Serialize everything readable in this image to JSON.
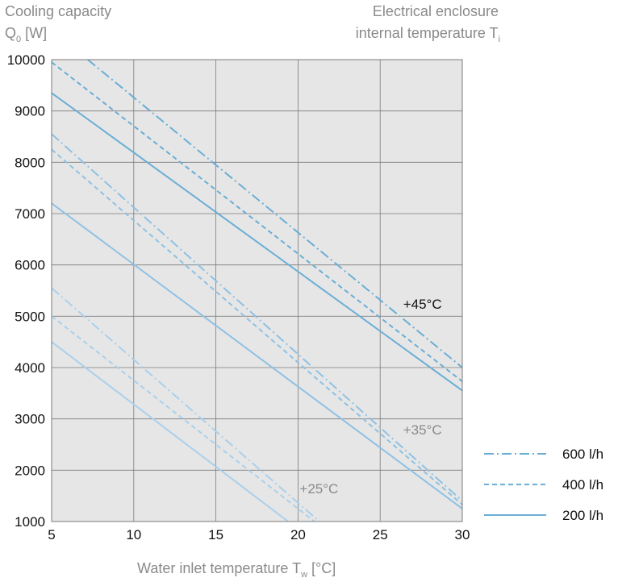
{
  "chart_data": {
    "type": "line",
    "title_left": {
      "line1": "Cooling capacity",
      "line2_main": "Q",
      "line2_sub": "0",
      "line2_unit": " [W]"
    },
    "title_right": {
      "line1": "Electrical enclosure",
      "line2_main": "internal temperature T",
      "line2_sub": "i"
    },
    "xlabel": {
      "main": "Water inlet temperature T",
      "sub": "w",
      "unit": " [°C]"
    },
    "xlim": [
      5,
      30
    ],
    "ylim": [
      1000,
      10000
    ],
    "xticks": [
      "5",
      "10",
      "15",
      "20",
      "25",
      "30"
    ],
    "yticks": [
      "1000",
      "2000",
      "3000",
      "4000",
      "5000",
      "6000",
      "7000",
      "8000",
      "9000",
      "10000"
    ],
    "grid": true,
    "legend": {
      "placement": "right",
      "entries": [
        {
          "label": "600 l/h",
          "style": "dashdot"
        },
        {
          "label": "400 l/h",
          "style": "dashed"
        },
        {
          "label": "200 l/h",
          "style": "solid"
        }
      ]
    },
    "groups": [
      {
        "label": "+45°C",
        "color": "#6aaed6",
        "label_color": "#111111",
        "series": [
          {
            "flow": "600 l/h",
            "style": "dashdot",
            "x": [
              7.2,
              30
            ],
            "y": [
              10000,
              4000
            ]
          },
          {
            "flow": "400 l/h",
            "style": "dashed",
            "x": [
              5,
              30
            ],
            "y": [
              9950,
              3730
            ]
          },
          {
            "flow": "200 l/h",
            "style": "solid",
            "x": [
              5,
              30
            ],
            "y": [
              9350,
              3550
            ]
          }
        ]
      },
      {
        "label": "+35°C",
        "color": "#8fc1e3",
        "label_color": "#8a8a8a",
        "series": [
          {
            "flow": "600 l/h",
            "style": "dashdot",
            "x": [
              5,
              30
            ],
            "y": [
              8550,
              1400
            ]
          },
          {
            "flow": "400 l/h",
            "style": "dashed",
            "x": [
              5,
              30
            ],
            "y": [
              8250,
              1330
            ]
          },
          {
            "flow": "200 l/h",
            "style": "solid",
            "x": [
              5,
              30
            ],
            "y": [
              7200,
              1250
            ]
          }
        ]
      },
      {
        "label": "+25°C",
        "color": "#a9d0ec",
        "label_color": "#8a8a8a",
        "series": [
          {
            "flow": "600 l/h",
            "style": "dashdot",
            "x": [
              5,
              21.3
            ],
            "y": [
              5550,
              1000
            ]
          },
          {
            "flow": "400 l/h",
            "style": "dashed",
            "x": [
              5,
              21.0
            ],
            "y": [
              5000,
              1000
            ]
          },
          {
            "flow": "200 l/h",
            "style": "solid",
            "x": [
              5,
              19.4
            ],
            "y": [
              4500,
              1000
            ]
          }
        ]
      }
    ],
    "colors": {
      "plot_background": "#e6e6e6",
      "grid": "#7a7a7a",
      "legend_line": "#6aaed6"
    }
  }
}
